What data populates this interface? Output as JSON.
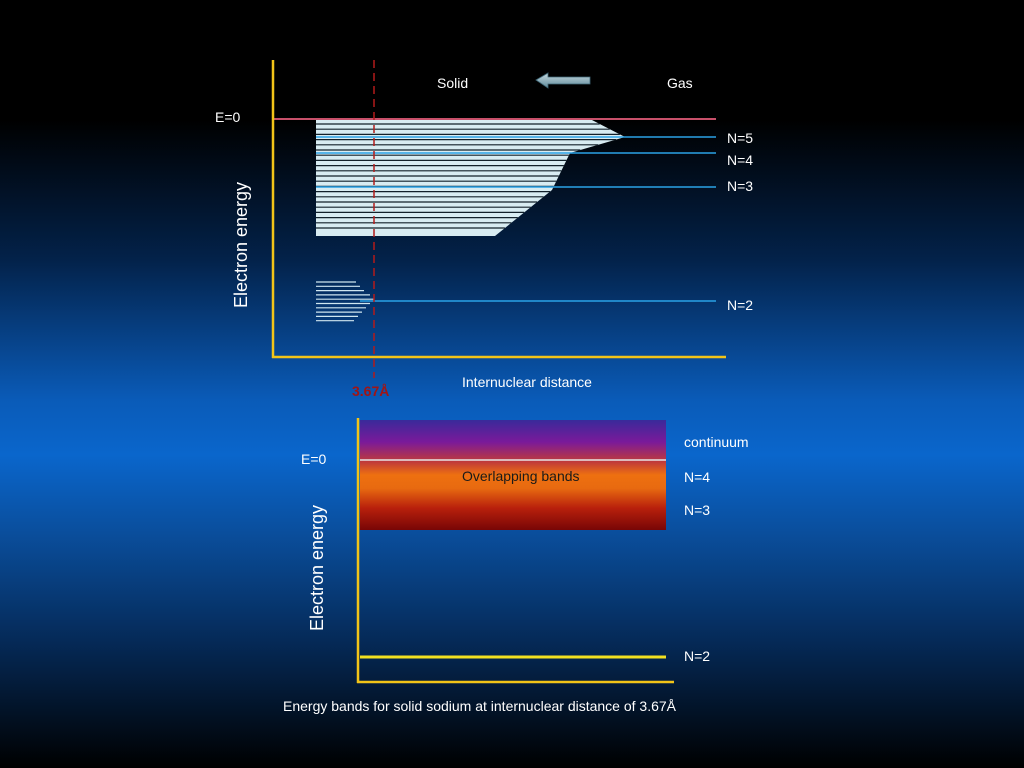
{
  "top": {
    "solid": "Solid",
    "gas": "Gas",
    "e0": "E=0",
    "ylabel": "Electron energy",
    "xlabel": "Internuclear distance",
    "distance": "3.67Å",
    "levels": [
      "N=5",
      "N=4",
      "N=3",
      "N=2"
    ]
  },
  "bottom": {
    "e0": "E=0",
    "ylabel": "Electron energy",
    "band": "Overlapping bands",
    "levels": [
      "continuum",
      "N=4",
      "N=3",
      "N=2"
    ],
    "caption": "Energy bands for solid sodium at internuclear distance of 3.67Å"
  },
  "colors": {
    "axis": "#f2c418",
    "level": "#2aa2e6",
    "e0line": "#c8506a",
    "dashed": "#b31b1b"
  }
}
